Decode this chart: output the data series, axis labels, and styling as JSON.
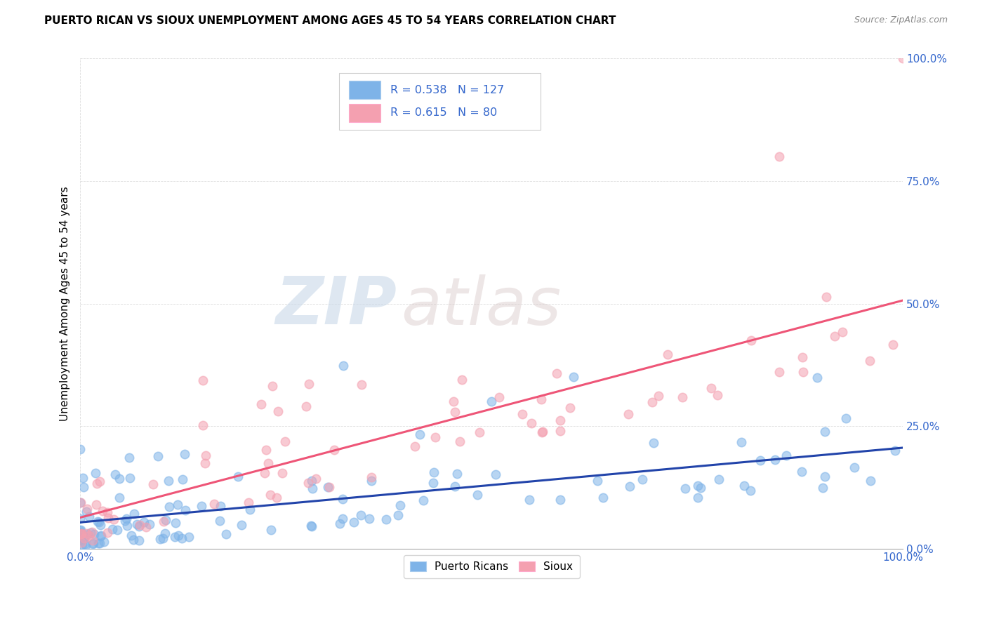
{
  "title": "PUERTO RICAN VS SIOUX UNEMPLOYMENT AMONG AGES 45 TO 54 YEARS CORRELATION CHART",
  "source": "Source: ZipAtlas.com",
  "ylabel": "Unemployment Among Ages 45 to 54 years",
  "xlim": [
    0,
    1.0
  ],
  "ylim": [
    0,
    1.0
  ],
  "ytick_labels": [
    "0.0%",
    "25.0%",
    "50.0%",
    "75.0%",
    "100.0%"
  ],
  "ytick_vals": [
    0.0,
    0.25,
    0.5,
    0.75,
    1.0
  ],
  "xtick_left": "0.0%",
  "xtick_right": "100.0%",
  "blue_R": 0.538,
  "blue_N": 127,
  "pink_R": 0.615,
  "pink_N": 80,
  "blue_color": "#7EB3E8",
  "pink_color": "#F4A0B0",
  "blue_line_color": "#2244AA",
  "pink_line_color": "#EE5577",
  "legend_labels": [
    "Puerto Ricans",
    "Sioux"
  ],
  "tick_color": "#3366CC",
  "title_fontsize": 11,
  "source_fontsize": 9,
  "watermark_zip_color": "#C8D8E8",
  "watermark_atlas_color": "#D8C8C8"
}
